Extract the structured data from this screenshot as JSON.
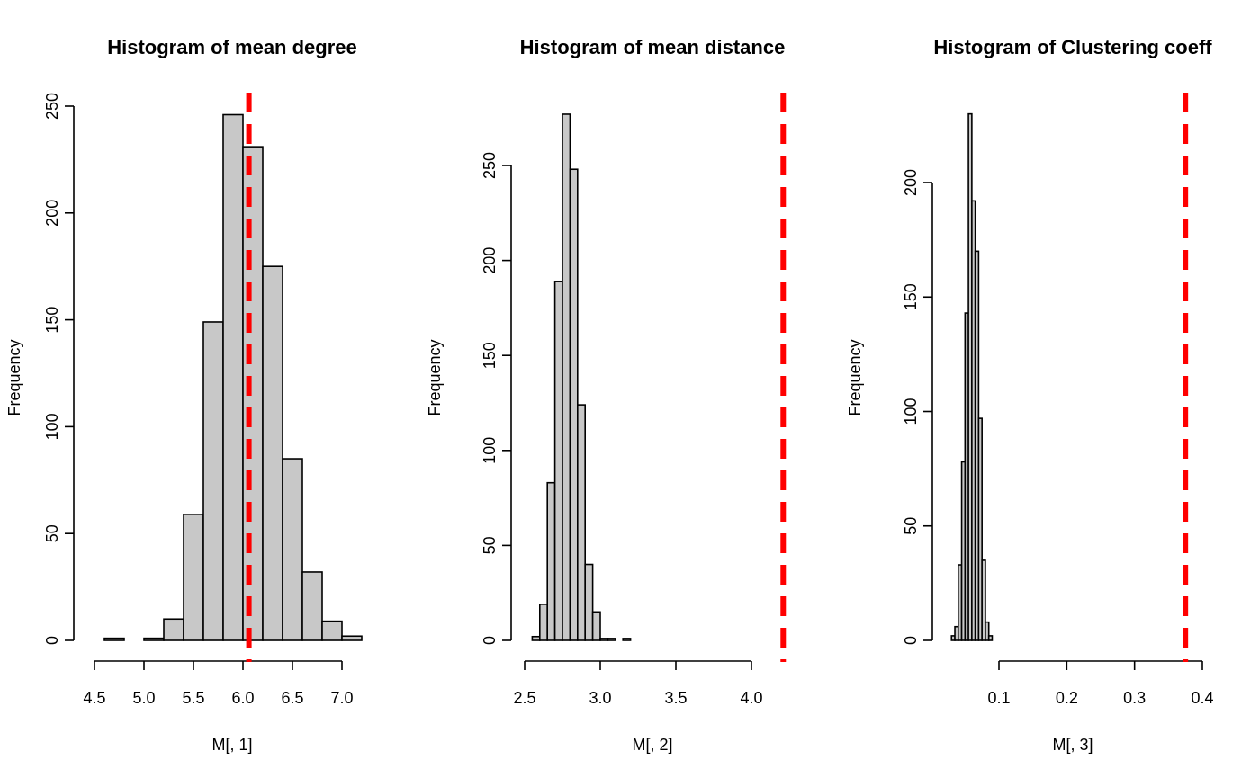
{
  "colors": {
    "bar_fill": "#c8c8c8",
    "bar_stroke": "#000000",
    "reference_line": "#ff0000",
    "background": "#ffffff"
  },
  "chart_data": [
    {
      "type": "bar",
      "title": "Histogram of mean degree",
      "xlabel": "M[, 1]",
      "ylabel": "Frequency",
      "x_ticks": [
        "4.5",
        "5.0",
        "5.5",
        "6.0",
        "6.5",
        "7.0"
      ],
      "y_ticks": [
        "0",
        "50",
        "100",
        "150",
        "200",
        "250"
      ],
      "xlim": [
        4.5,
        7.2
      ],
      "ylim": [
        0,
        250
      ],
      "bin_edges": [
        4.6,
        4.8,
        5.0,
        5.2,
        5.4,
        5.6,
        5.8,
        6.0,
        6.2,
        6.4,
        6.6,
        6.8,
        7.0,
        7.2
      ],
      "counts": [
        1,
        0,
        1,
        10,
        59,
        149,
        246,
        231,
        175,
        85,
        32,
        9,
        2
      ],
      "reference_line_x": 6.06,
      "grid": false
    },
    {
      "type": "bar",
      "title": "Histogram of mean distance",
      "xlabel": "M[, 2]",
      "ylabel": "Frequency",
      "x_ticks": [
        "2.5",
        "3.0",
        "3.5",
        "4.0"
      ],
      "y_ticks": [
        "0",
        "50",
        "100",
        "150",
        "200",
        "250"
      ],
      "xlim": [
        2.5,
        4.0
      ],
      "ylim": [
        0,
        250
      ],
      "bin_edges": [
        2.55,
        2.6,
        2.65,
        2.7,
        2.75,
        2.8,
        2.85,
        2.9,
        2.95,
        3.0,
        3.05,
        3.1,
        3.15,
        3.2
      ],
      "counts": [
        2,
        19,
        83,
        189,
        277,
        248,
        124,
        40,
        15,
        1,
        1,
        0,
        1
      ],
      "reference_line_x": 4.21,
      "grid": false
    },
    {
      "type": "bar",
      "title": "Histogram of Clustering coeff",
      "xlabel": "M[, 3]",
      "ylabel": "Frequency",
      "x_ticks": [
        "0.1",
        "0.2",
        "0.3",
        "0.4"
      ],
      "y_ticks": [
        "0",
        "50",
        "100",
        "150",
        "200"
      ],
      "xlim": [
        0.1,
        0.4
      ],
      "ylim": [
        0,
        200
      ],
      "bin_edges": [
        0.03,
        0.035,
        0.04,
        0.045,
        0.05,
        0.055,
        0.06,
        0.065,
        0.07,
        0.075,
        0.08,
        0.085,
        0.09
      ],
      "counts": [
        2,
        6,
        33,
        78,
        143,
        230,
        192,
        170,
        97,
        35,
        8,
        2
      ],
      "reference_line_x": 0.375,
      "grid": false
    }
  ]
}
